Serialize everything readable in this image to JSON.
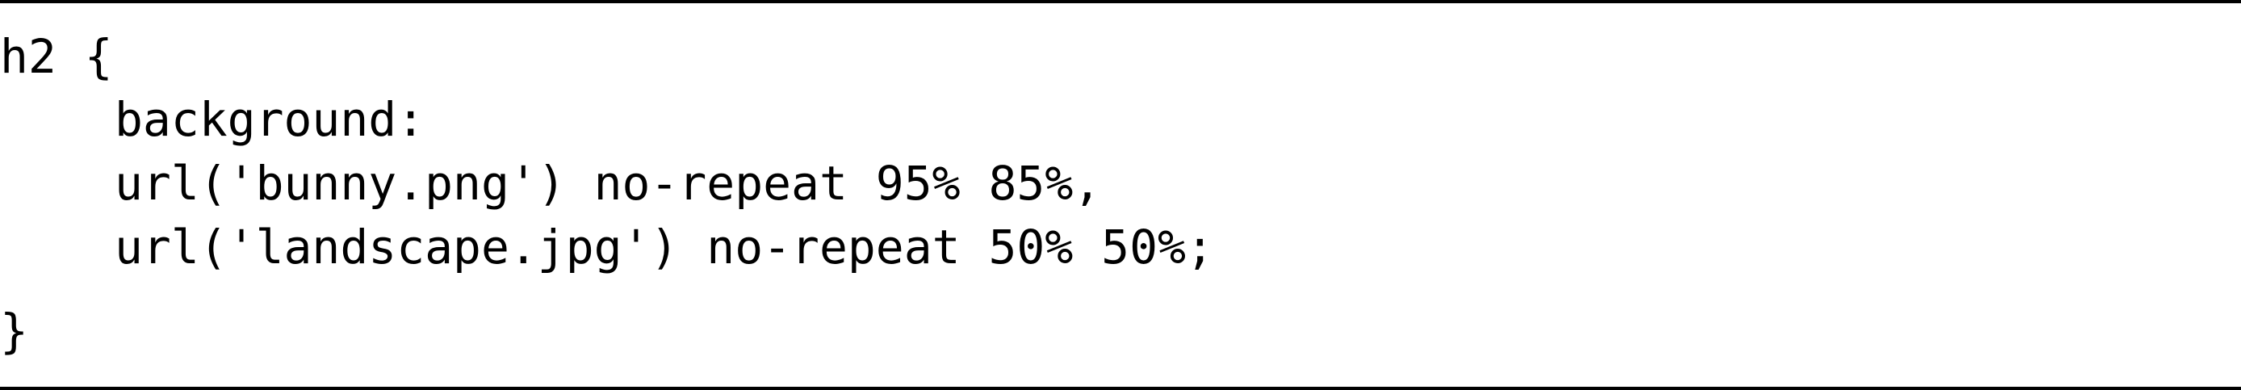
{
  "code": {
    "lines": [
      "h2 {",
      "background:",
      "url('bunny.png') no-repeat 95% 85%,",
      "url('landscape.jpg') no-repeat 50% 50%;",
      "}"
    ]
  }
}
